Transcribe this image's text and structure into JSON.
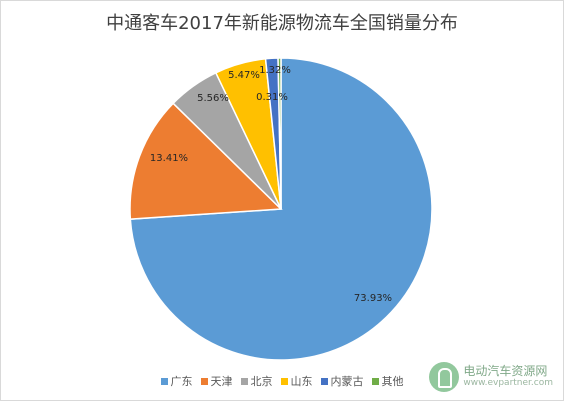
{
  "chart_data": {
    "type": "pie",
    "title": "中通客车2017年新能源物流车全国销量分布",
    "categories": [
      "广东",
      "天津",
      "北京",
      "山东",
      "内蒙古",
      "其他"
    ],
    "values": [
      73.93,
      13.41,
      5.56,
      5.47,
      1.32,
      0.31
    ],
    "labels": [
      "73.93%",
      "13.41%",
      "5.56%",
      "5.47%",
      "1.32%",
      "0.31%"
    ],
    "colors": [
      "#5b9bd5",
      "#ed7d31",
      "#a5a5a5",
      "#ffc000",
      "#4472c4",
      "#70ad47"
    ],
    "legend_position": "bottom"
  },
  "watermark": {
    "name": "电动汽车资源网",
    "url": "www.evpartner.com"
  }
}
